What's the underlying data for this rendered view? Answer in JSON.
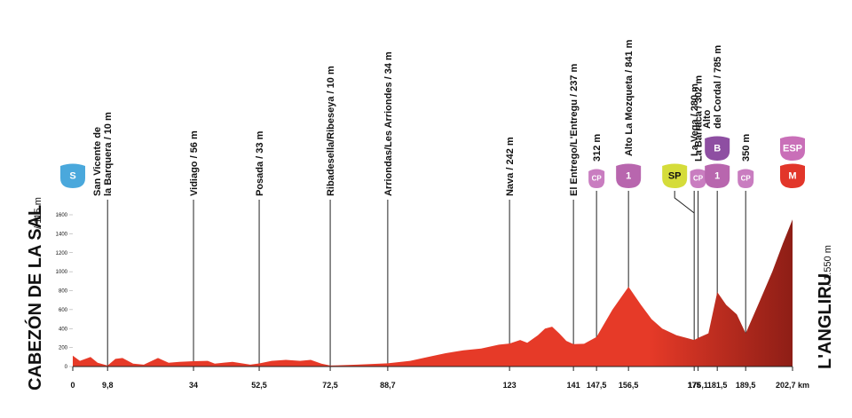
{
  "chart_data": {
    "type": "profile",
    "start": {
      "name": "CABEZÓN DE LA SAL",
      "elevation": "/ 115 m"
    },
    "finish": {
      "name": "L'ANGLIRU",
      "elevation": "/ 1.550 m"
    },
    "xlim": [
      0,
      202.7
    ],
    "ylim": [
      0,
      1600
    ],
    "yticks": [
      0,
      200,
      400,
      600,
      800,
      1000,
      1200,
      1400,
      1600
    ],
    "xticks": [
      0,
      {
        "value": 9.8,
        "label": "9,8"
      },
      34,
      {
        "value": 52.5,
        "label": "52,5"
      },
      {
        "value": 72.5,
        "label": "72,5"
      },
      {
        "value": 88.7,
        "label": "88,7"
      },
      123,
      141,
      {
        "value": 147.5,
        "label": "147,5"
      },
      {
        "value": 156.5,
        "label": "156,5"
      },
      175,
      {
        "value": 176.1,
        "label": "176,1"
      },
      {
        "value": 181.5,
        "label": "181,5"
      },
      {
        "value": 189.5,
        "label": "189,5"
      },
      {
        "value": 202.7,
        "label": "202,7 km"
      }
    ],
    "color": "#e63a28",
    "profile": {
      "km": [
        0,
        2,
        5,
        7,
        9.8,
        12,
        14,
        17,
        20,
        24,
        27,
        30,
        34,
        38,
        40,
        45,
        50,
        52.5,
        56,
        60,
        64,
        67,
        70,
        72.5,
        80,
        88.7,
        95,
        100,
        105,
        110,
        115,
        120,
        123,
        126,
        128,
        131,
        133,
        135,
        137,
        139,
        141,
        144,
        147.5,
        152,
        156.5,
        160,
        163,
        166,
        170,
        175,
        176.1,
        179,
        181.5,
        184,
        187,
        189.5,
        193,
        197,
        200,
        202.7
      ],
      "elevation": [
        115,
        60,
        100,
        40,
        10,
        80,
        90,
        30,
        20,
        90,
        40,
        50,
        56,
        60,
        30,
        50,
        20,
        33,
        60,
        70,
        60,
        70,
        30,
        10,
        20,
        34,
        60,
        100,
        140,
        170,
        190,
        230,
        242,
        280,
        250,
        330,
        400,
        420,
        350,
        270,
        237,
        240,
        312,
        600,
        841,
        650,
        500,
        400,
        330,
        280,
        302,
        350,
        785,
        650,
        550,
        350,
        650,
        1000,
        1300,
        1550
      ]
    },
    "waypoints": [
      {
        "km": 0,
        "markers": [
          {
            "text": "S",
            "color": "#4aa8dc"
          }
        ]
      },
      {
        "km": 9.8,
        "label": [
          "San Vicente de",
          "la Barquera / 10 m"
        ]
      },
      {
        "km": 34,
        "label": [
          "Vidiago / 56 m"
        ]
      },
      {
        "km": 52.5,
        "label": [
          "Posada / 33 m"
        ]
      },
      {
        "km": 72.5,
        "label": [
          "Ribadesella/Ribeseya / 10 m"
        ]
      },
      {
        "km": 88.7,
        "label": [
          "Arriondas/Les Arriondes / 34 m"
        ]
      },
      {
        "km": 123,
        "label": [
          "Nava / 242 m"
        ]
      },
      {
        "km": 141,
        "label": [
          "El Entrego/L'Entregu / 237 m"
        ]
      },
      {
        "km": 147.5,
        "label": [
          "312 m"
        ],
        "markers": [
          {
            "text": "CP",
            "color": "#c97dc0"
          }
        ]
      },
      {
        "km": 156.5,
        "label": [
          "Alto La Mozqueta / 841 m"
        ],
        "markers": [
          {
            "text": "1",
            "color": "#b866ae"
          }
        ]
      },
      {
        "km": 175,
        "label": [
          "La Vega / 280 m"
        ],
        "markers": [
          {
            "text": "SP",
            "color": "#d5dc3a"
          }
        ]
      },
      {
        "km": 176.1,
        "label": [
          "La Barraca / 302 m"
        ],
        "markers": [
          {
            "text": "CP",
            "color": "#c97dc0"
          }
        ]
      },
      {
        "km": 181.5,
        "label": [
          "Alto",
          "del Cordal / 785 m"
        ],
        "markers": [
          {
            "text": "1",
            "color": "#b866ae"
          },
          {
            "text": "B",
            "color": "#8e4fa2"
          }
        ]
      },
      {
        "km": 189.5,
        "label": [
          "350 m"
        ],
        "markers": [
          {
            "text": "CP",
            "color": "#c97dc0"
          }
        ]
      },
      {
        "km": 202.7,
        "markers": [
          {
            "text": "M",
            "color": "#e2362a"
          },
          {
            "text": "ESP",
            "color": "#c96fb8"
          }
        ]
      }
    ]
  }
}
